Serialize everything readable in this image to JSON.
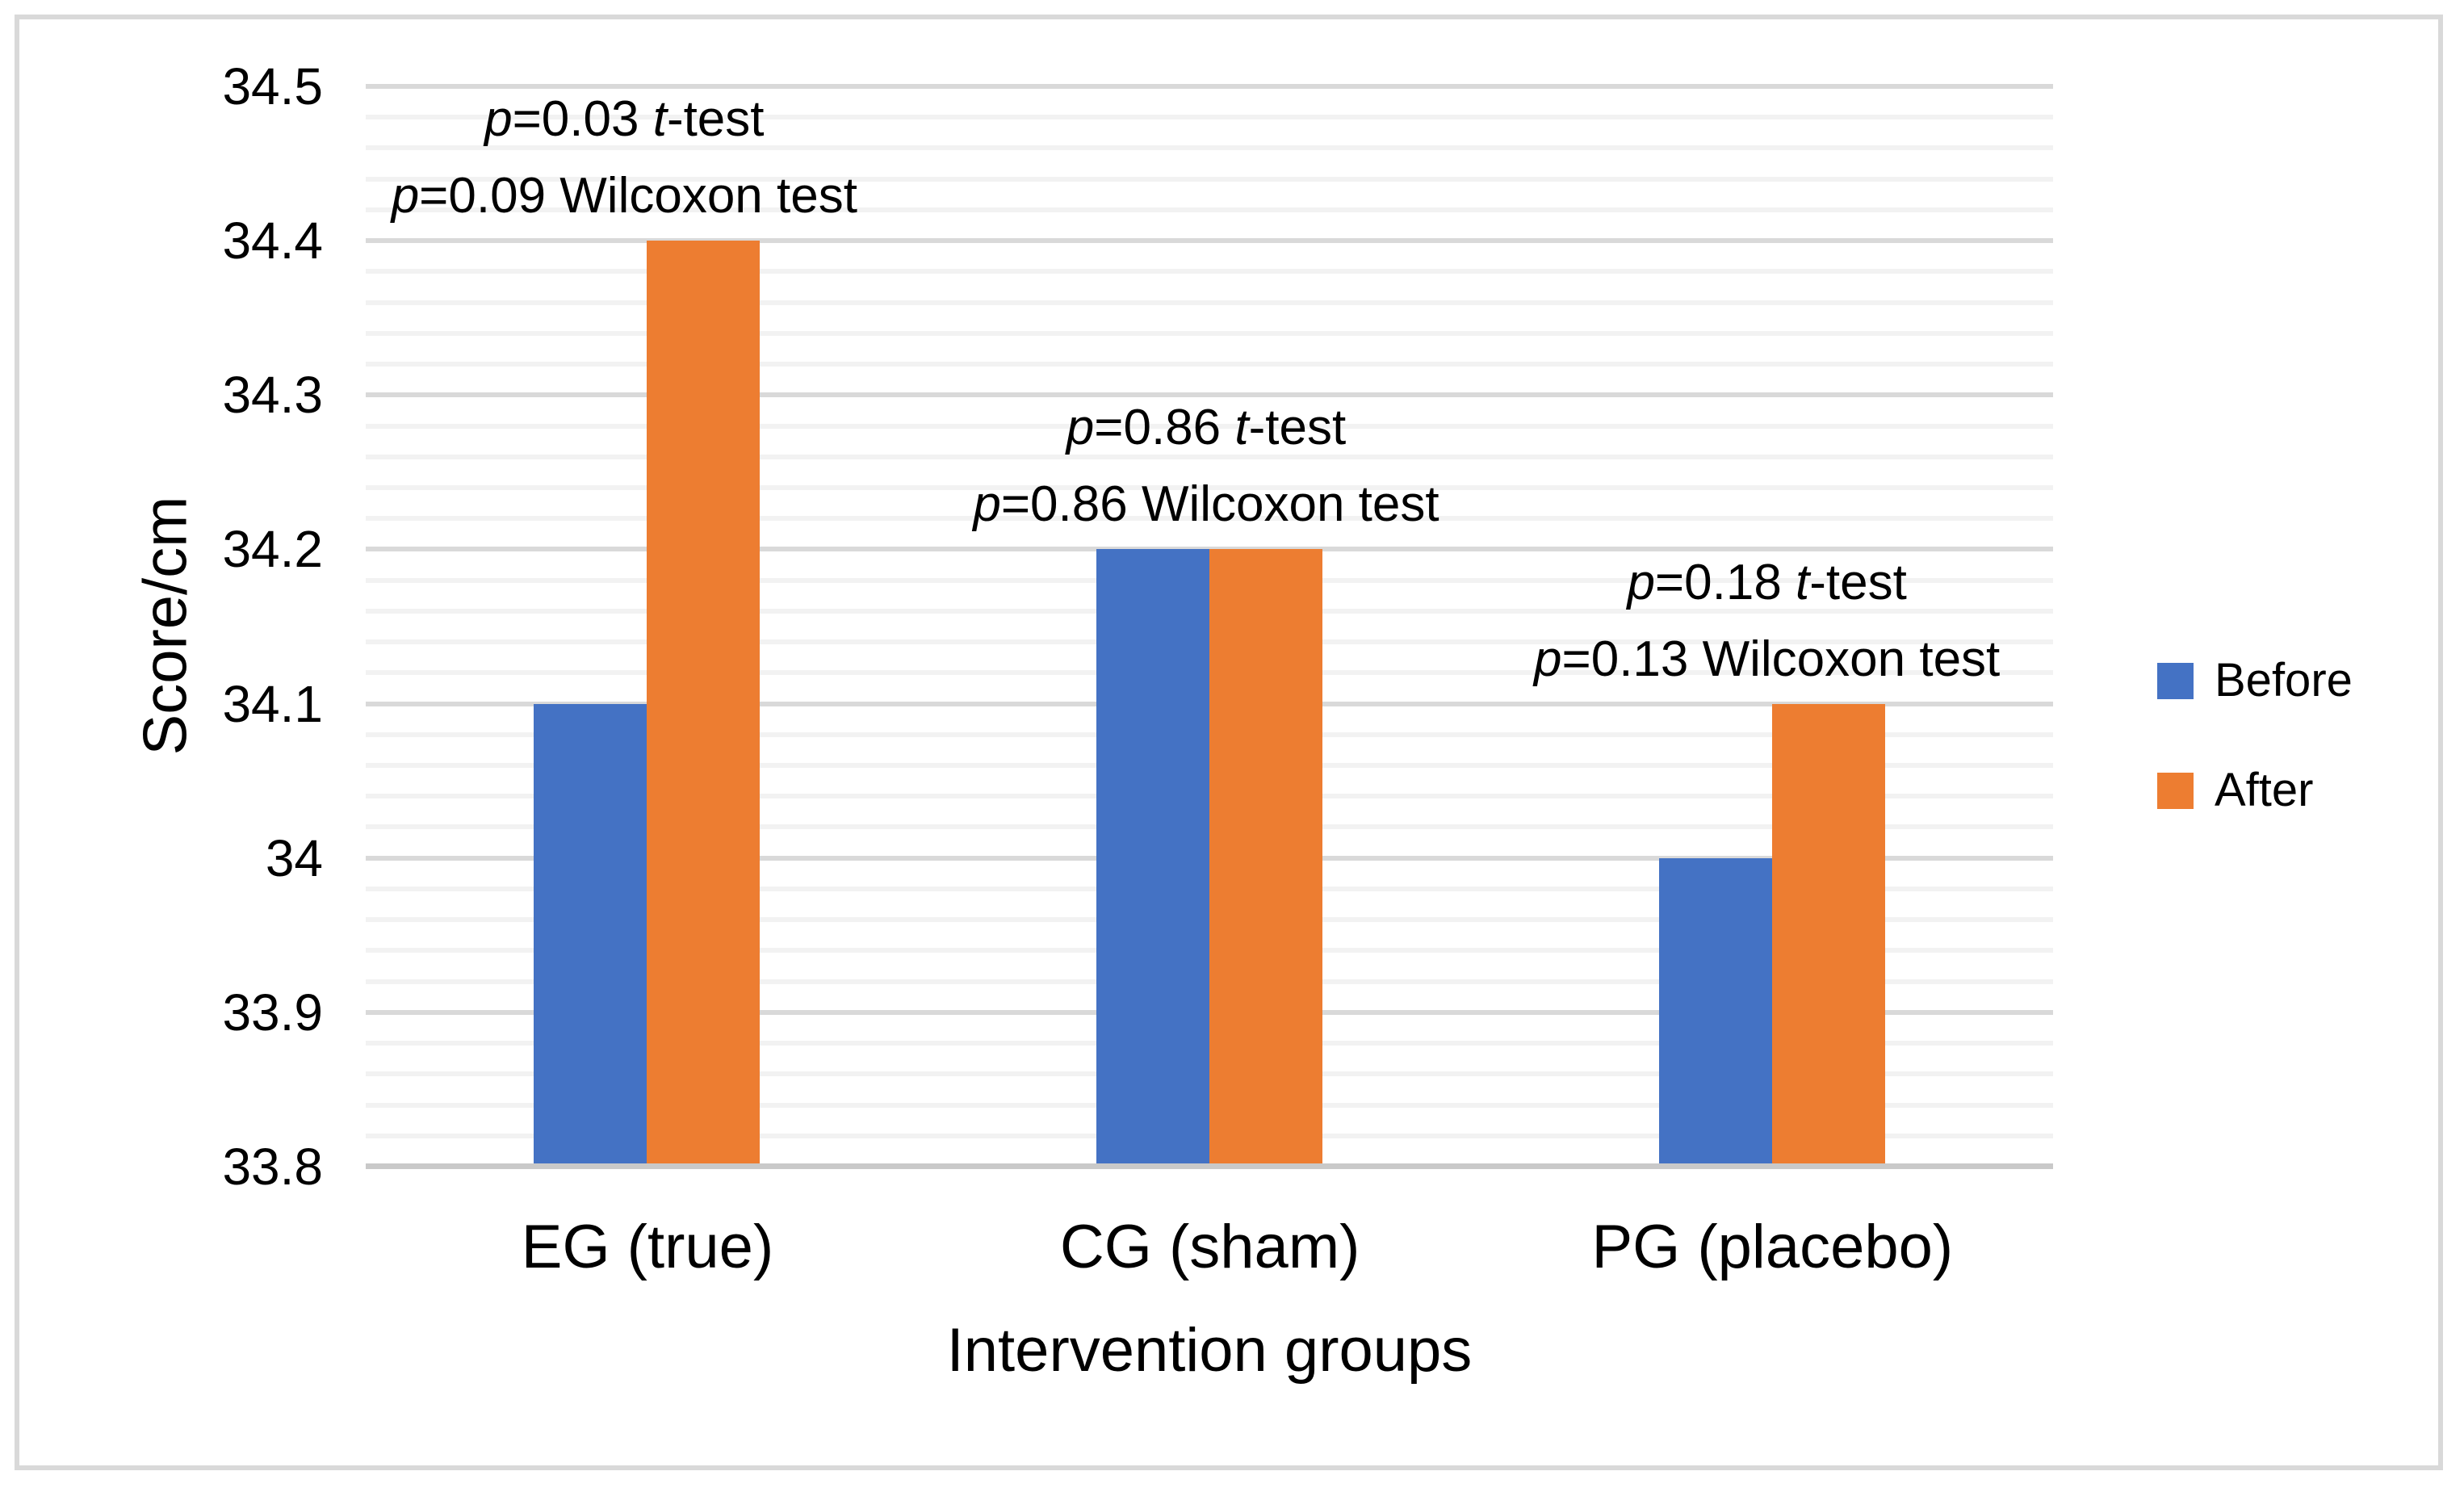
{
  "chart_data": {
    "type": "bar",
    "title": "",
    "xlabel": "Intervention groups",
    "ylabel": "Score/cm",
    "categories": [
      "EG (true)",
      "CG (sham)",
      "PG (placebo)"
    ],
    "series": [
      {
        "name": "Before",
        "color": "#4472C4",
        "values": [
          34.1,
          34.2,
          34.0
        ]
      },
      {
        "name": "After",
        "color": "#ED7D31",
        "values": [
          34.4,
          34.2,
          34.1
        ]
      }
    ],
    "ylim": [
      33.8,
      34.5
    ],
    "ytick_values": [
      33.8,
      33.9,
      34.0,
      34.1,
      34.2,
      34.3,
      34.4,
      34.5
    ],
    "ytick_labels": [
      "33.8",
      "33.9",
      "34",
      "34.1",
      "34.2",
      "34.3",
      "34.4",
      "34.5"
    ],
    "minor_gridline_step": 0.02,
    "major_gridline_step": 0.1,
    "grid": "horizontal major+minor",
    "legend_position": "right",
    "annotation_labels": {
      "p_symbol": "p",
      "t_symbol": "t",
      "equals": "=",
      "ttest_suffix": "-test",
      "wilcoxon_suffix": "Wilcoxon test"
    },
    "annotations": [
      {
        "group": "EG (true)",
        "ttest_p": "0.03",
        "wilcoxon_p": "0.09",
        "dx": -28
      },
      {
        "group": "CG (sham)",
        "ttest_p": "0.86",
        "wilcoxon_p": "0.86",
        "dx": -4
      },
      {
        "group": "PG (placebo)",
        "ttest_p": "0.18",
        "wilcoxon_p": "0.13",
        "dx": -6
      }
    ]
  },
  "colors": {
    "before": "#4472C4",
    "after": "#ED7D31",
    "grid_major": "#D9D9D9",
    "grid_minor": "#F2F2F2",
    "axis_line": "#C9C9C9",
    "frame_border": "#D9D9D9",
    "text": "#000000"
  }
}
